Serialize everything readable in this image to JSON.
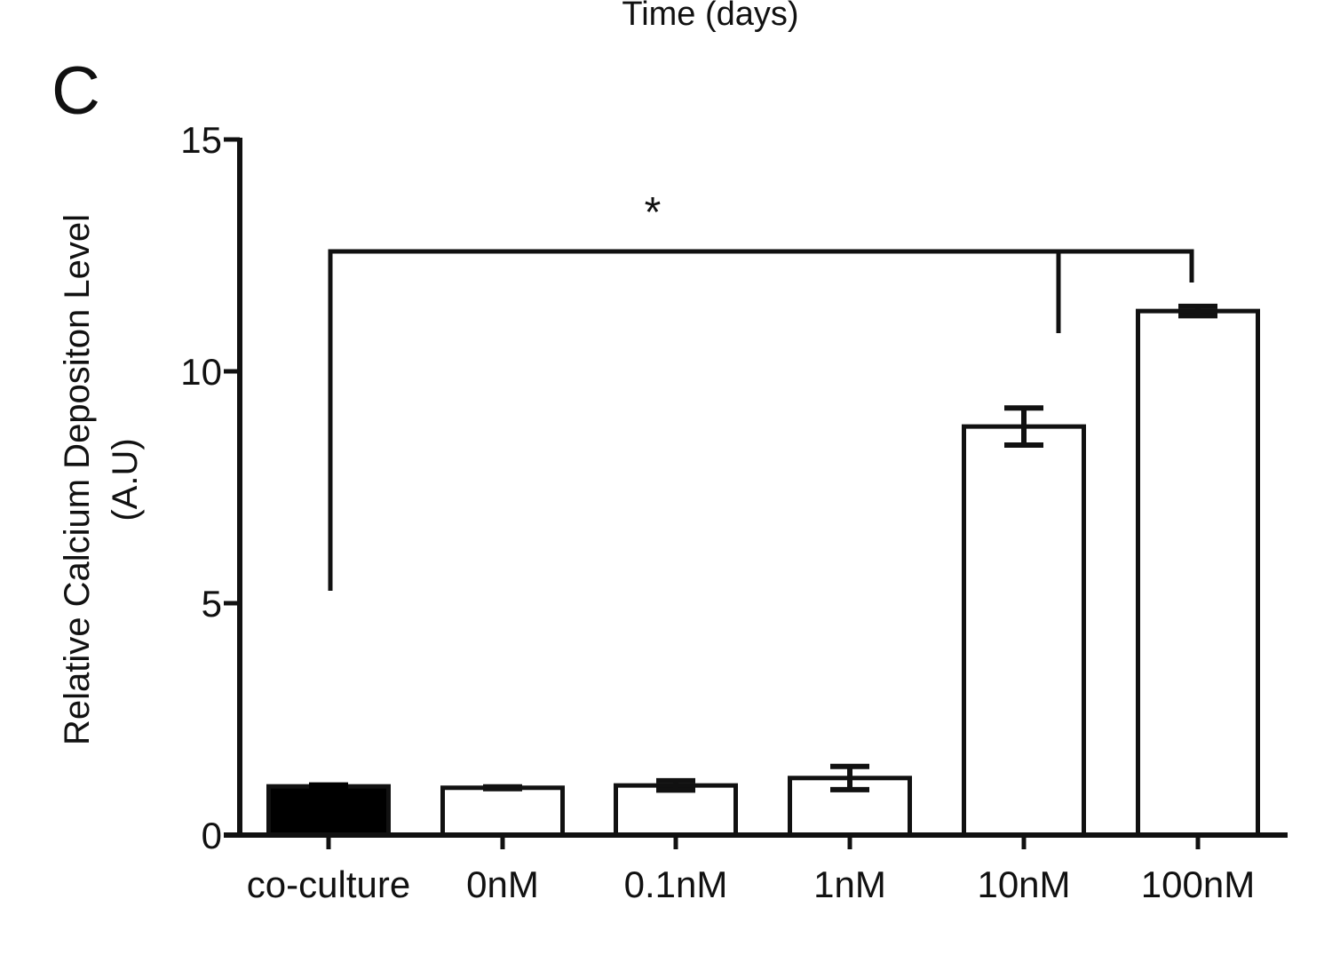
{
  "header": {
    "cut_off_axis_title": "Time (days)",
    "panel_label": "C"
  },
  "chart_data": {
    "type": "bar",
    "y_label_lines": [
      "Relative Calcium Depositon Level",
      "(A.U)"
    ],
    "categories": [
      "co-culture",
      "0nM",
      "0.1nM",
      "1nM",
      "10nM",
      "100nM"
    ],
    "values": [
      1.05,
      1.02,
      1.07,
      1.23,
      8.81,
      11.3
    ],
    "errors": [
      0.03,
      0.02,
      0.1,
      0.25,
      0.4,
      0.1
    ],
    "colors": [
      "#000000",
      "#ffffff",
      "#ffffff",
      "#ffffff",
      "#ffffff",
      "#ffffff"
    ],
    "ylim": [
      0,
      15
    ],
    "yticks": [
      0,
      5,
      10,
      15
    ],
    "annotations": [
      "*"
    ]
  }
}
